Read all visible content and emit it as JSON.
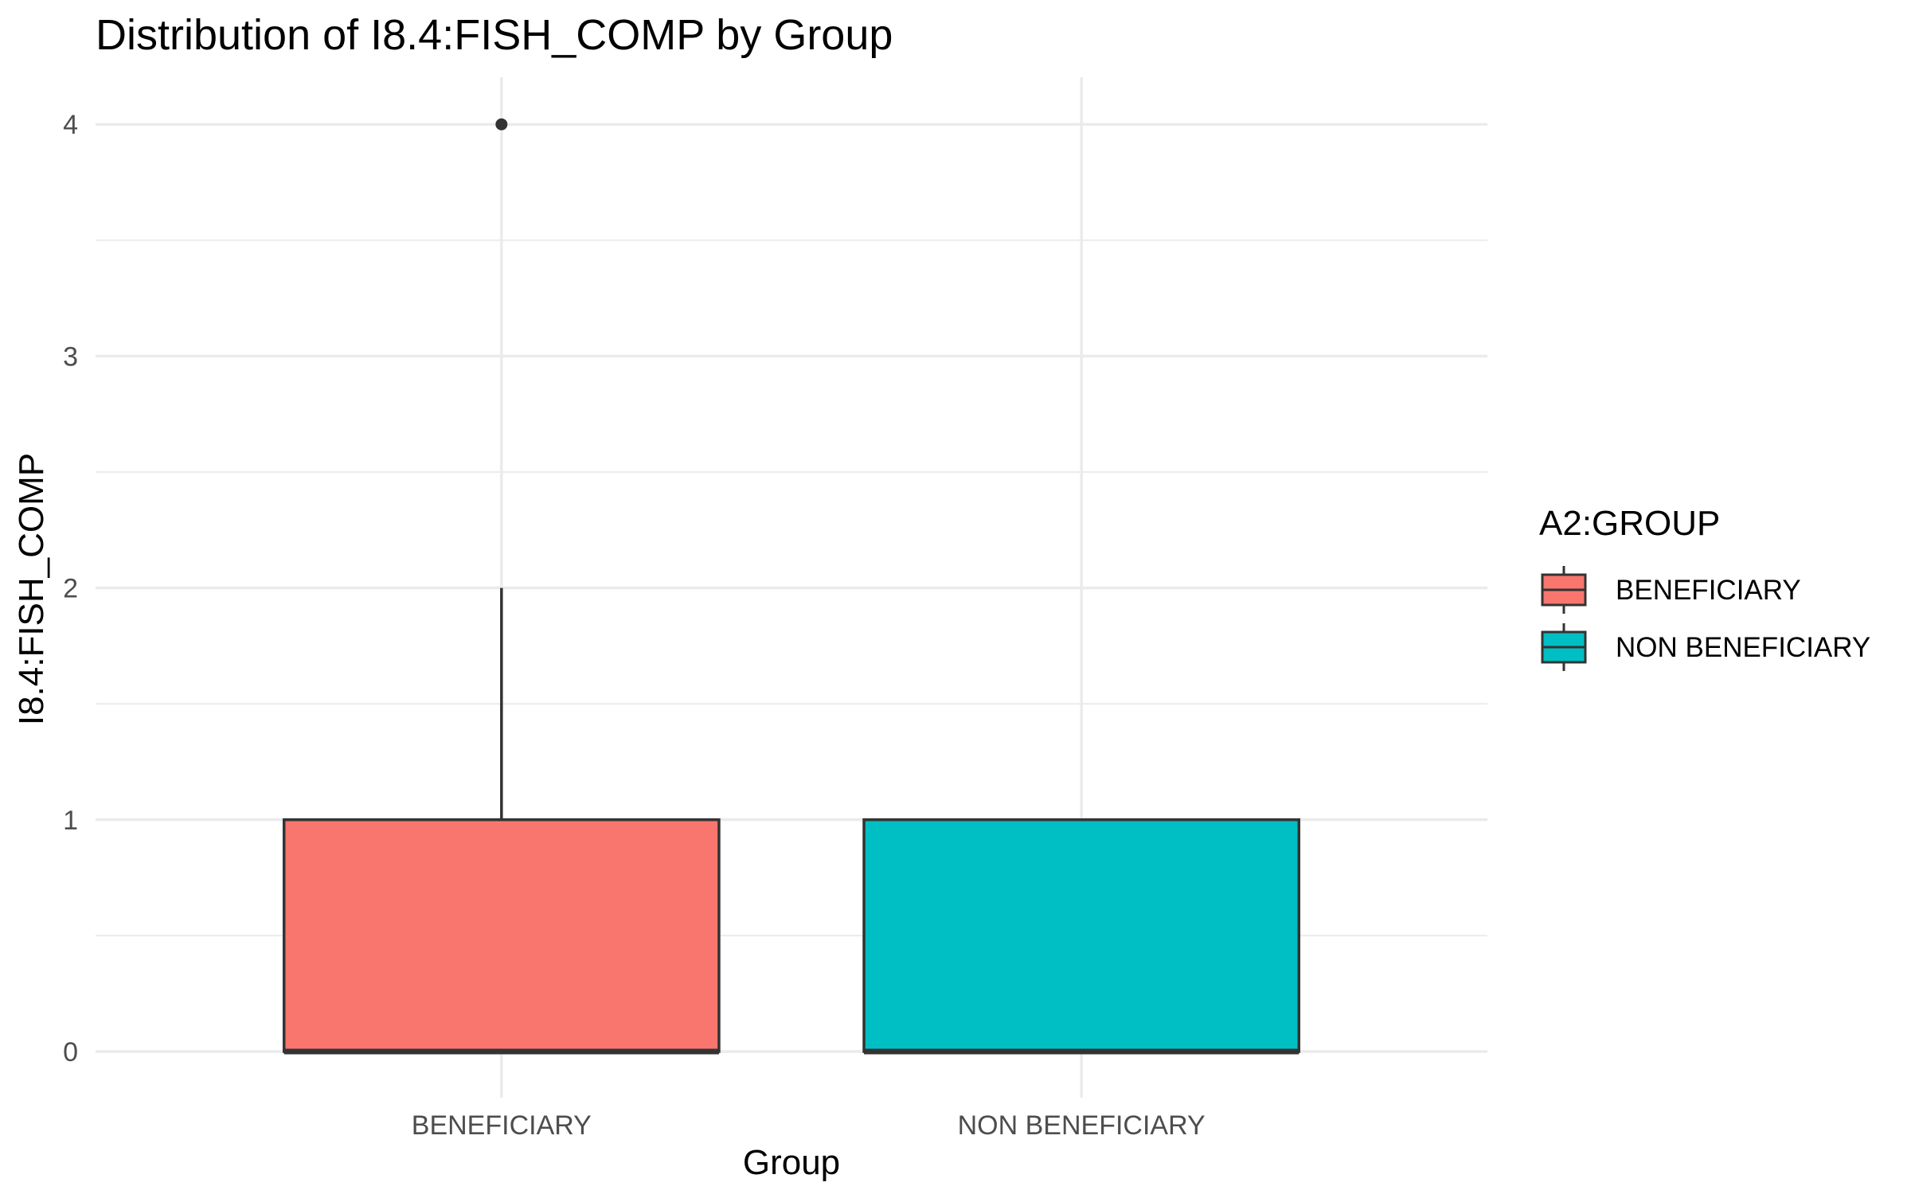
{
  "chart_data": {
    "type": "boxplot",
    "title": "Distribution of I8.4:FISH_COMP by Group",
    "xlabel": "Group",
    "ylabel": "I8.4:FISH_COMP",
    "ylim": [
      -0.2,
      4.2
    ],
    "yticks": [
      0,
      1,
      2,
      3,
      4
    ],
    "y_tick_labels": [
      "0",
      "1",
      "2",
      "3",
      "4"
    ],
    "grid": true,
    "categories": [
      "BENEFICIARY",
      "NON BENEFICIARY"
    ],
    "boxes": [
      {
        "category": "BENEFICIARY",
        "min": 0,
        "q1": 0,
        "median": 0,
        "q3": 1,
        "max": 2,
        "outliers": [
          4
        ],
        "color": "#F8766D"
      },
      {
        "category": "NON BENEFICIARY",
        "min": 0,
        "q1": 0,
        "median": 0,
        "q3": 1,
        "max": 1,
        "outliers": [],
        "color": "#00BFC4"
      }
    ],
    "legend": {
      "title": "A2:GROUP",
      "position": "right",
      "items": [
        {
          "label": "BENEFICIARY",
          "color": "#F8766D"
        },
        {
          "label": "NON BENEFICIARY",
          "color": "#00BFC4"
        }
      ]
    }
  }
}
